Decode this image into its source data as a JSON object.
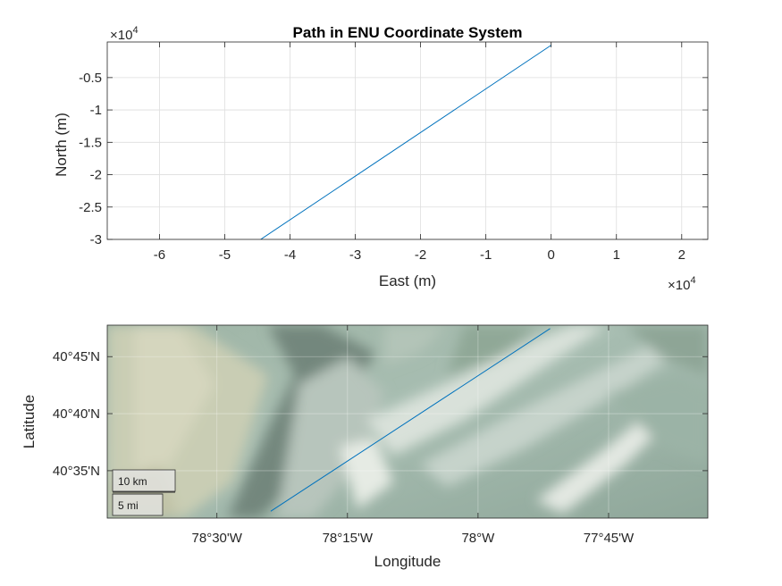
{
  "chart_data": [
    {
      "type": "line",
      "title": "Path in ENU Coordinate System",
      "xlabel": "East (m)",
      "ylabel": "North (m)",
      "xlim": [
        -6.8,
        2.4
      ],
      "ylim": [
        -3.0,
        0.05
      ],
      "x_exponent_base": "×10",
      "x_exponent_power": "4",
      "y_exponent_base": "×10",
      "y_exponent_power": "4",
      "xticks": [
        -6,
        -5,
        -4,
        -3,
        -2,
        -1,
        0,
        1,
        2
      ],
      "xtick_labels": [
        "-6",
        "-5",
        "-4",
        "-3",
        "-2",
        "-1",
        "0",
        "1",
        "2"
      ],
      "yticks": [
        -0.5,
        -1,
        -1.5,
        -2,
        -2.5,
        -3
      ],
      "ytick_labels": [
        "-0.5",
        "-1",
        "-1.5",
        "-2",
        "-2.5",
        "-3"
      ],
      "grid": true,
      "series": [
        {
          "x": [
            0,
            -4.45
          ],
          "y": [
            0,
            -3.0
          ],
          "color": "#0072bd"
        }
      ]
    },
    {
      "type": "line",
      "xlabel": "Longitude",
      "ylabel": "Latitude",
      "basemap": "terrain",
      "xlim": [
        -78.71,
        -77.56
      ],
      "ylim": [
        40.514,
        40.796
      ],
      "xticks": [
        -78.5,
        -78.25,
        -78.0,
        -77.75
      ],
      "xtick_labels": [
        "78°30'W",
        "78°15'W",
        "78°W",
        "77°45'W"
      ],
      "yticks": [
        40.75,
        40.6667,
        40.5833
      ],
      "ytick_labels": [
        "40°45'N",
        "40°40'N",
        "40°35'N"
      ],
      "grid": true,
      "series": [
        {
          "lon": [
            -78.397,
            -77.862
          ],
          "lat": [
            40.524,
            40.791
          ],
          "color": "#0072bd"
        }
      ],
      "scale_bar": {
        "km_label": "10 km",
        "mi_label": "5 mi"
      }
    }
  ]
}
